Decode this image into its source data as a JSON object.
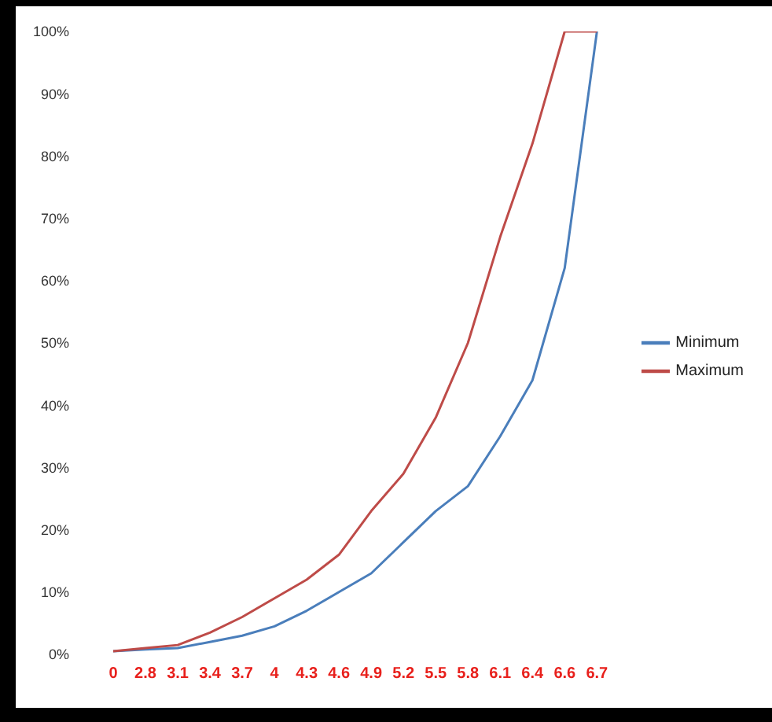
{
  "chart_data": {
    "type": "line",
    "categories": [
      "0",
      "2.8",
      "3.1",
      "3.4",
      "3.7",
      "4",
      "4.3",
      "4.6",
      "4.9",
      "5.2",
      "5.5",
      "5.8",
      "6.1",
      "6.4",
      "6.6",
      "6.7"
    ],
    "series": [
      {
        "name": "Minimum",
        "color": "#4a7ebb",
        "values": [
          0.5,
          0.8,
          1,
          2,
          3,
          4.5,
          7,
          10,
          13,
          18,
          23,
          27,
          35,
          44,
          62,
          100
        ]
      },
      {
        "name": "Maximum",
        "color": "#be4b48",
        "values": [
          0.5,
          1,
          1.5,
          3.5,
          6,
          9,
          12,
          16,
          23,
          29,
          38,
          50,
          67,
          82,
          100,
          100
        ]
      }
    ],
    "ylim": [
      0,
      100
    ],
    "yticks": [
      {
        "value": 0,
        "label": "0%"
      },
      {
        "value": 10,
        "label": "10%"
      },
      {
        "value": 20,
        "label": "20%"
      },
      {
        "value": 30,
        "label": "30%"
      },
      {
        "value": 40,
        "label": "40%"
      },
      {
        "value": 50,
        "label": "50%"
      },
      {
        "value": 60,
        "label": "60%"
      },
      {
        "value": 70,
        "label": "70%"
      },
      {
        "value": 80,
        "label": "80%"
      },
      {
        "value": 90,
        "label": "90%"
      },
      {
        "value": 100,
        "label": "100%"
      }
    ],
    "legend": "right",
    "marker": "none"
  }
}
